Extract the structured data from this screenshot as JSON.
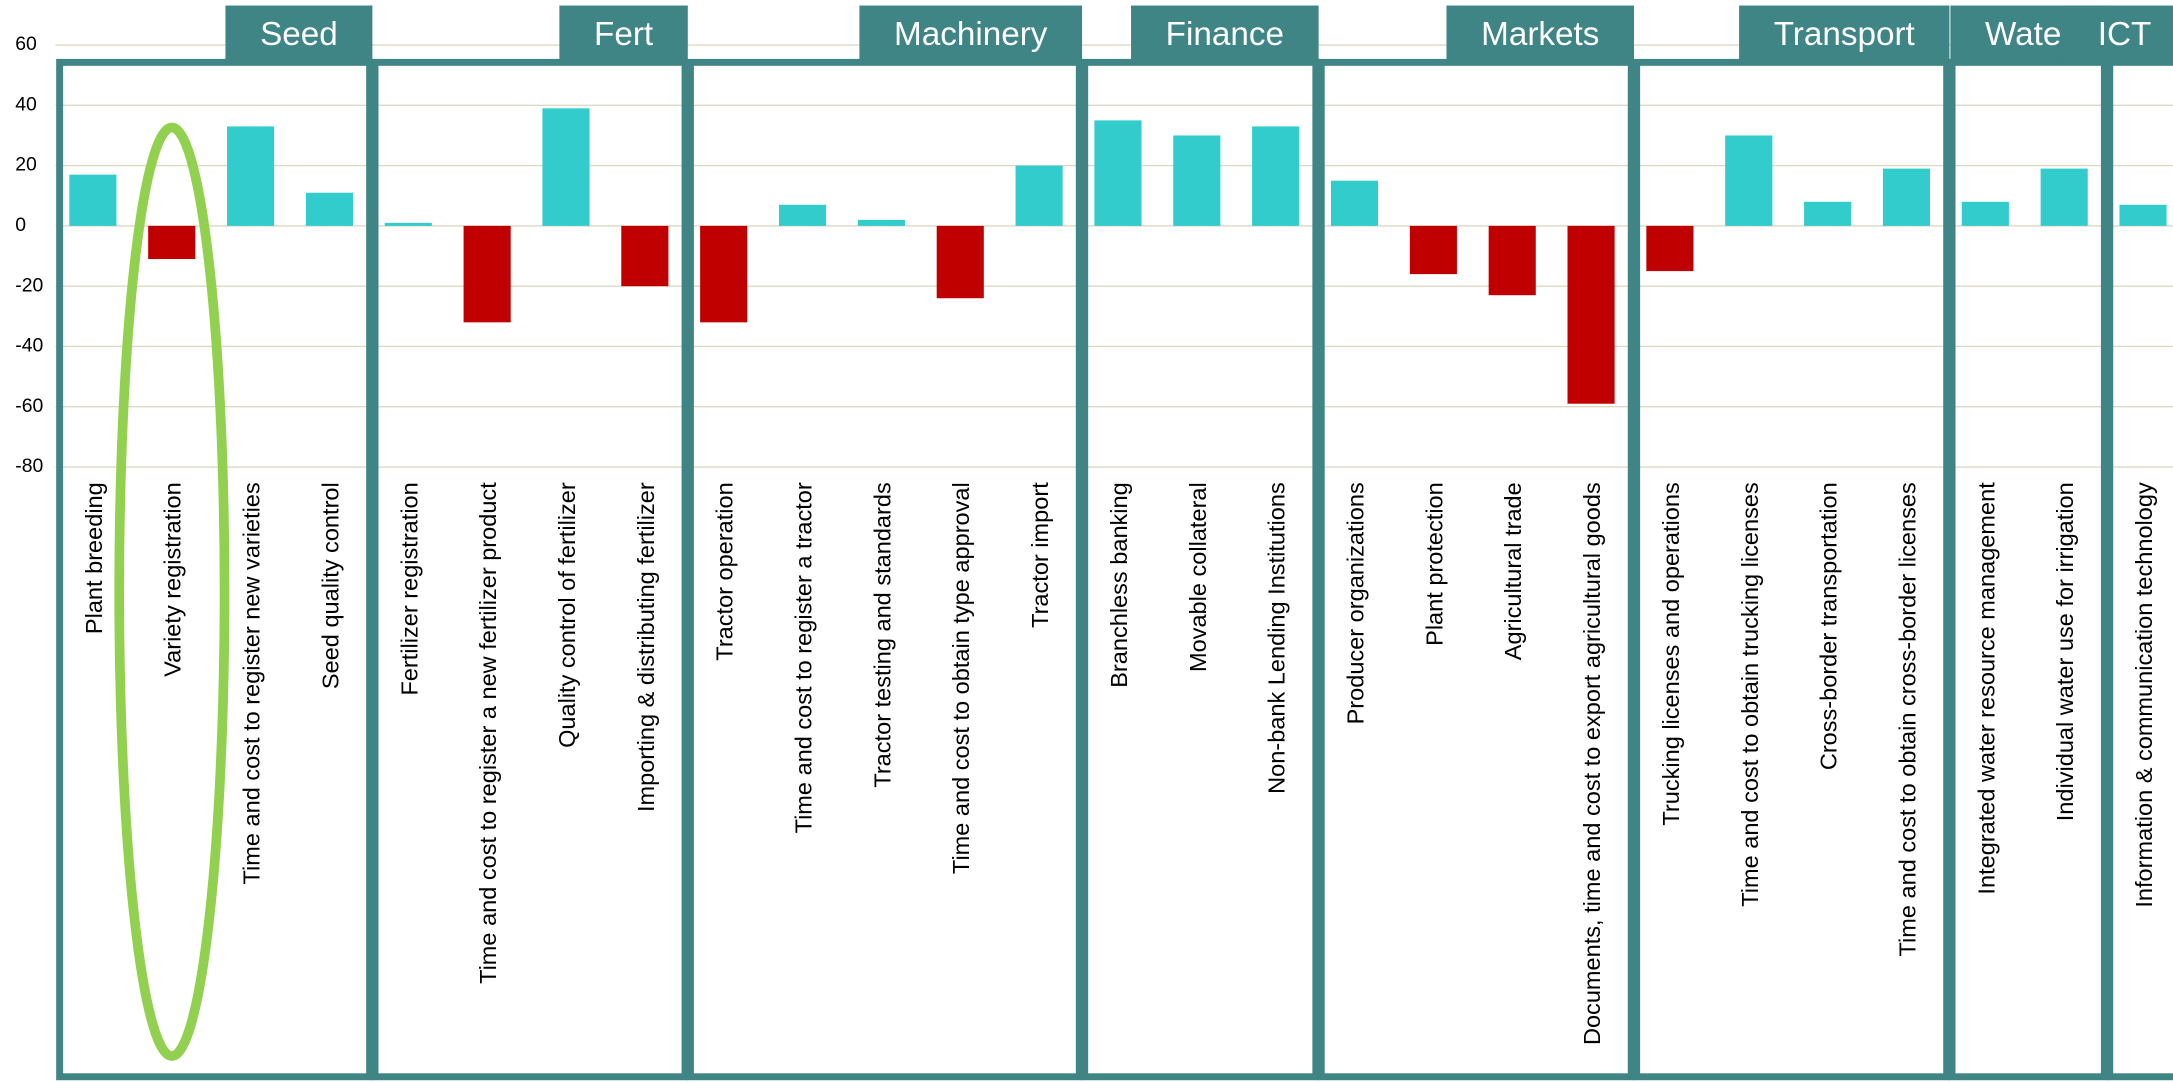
{
  "chart_data": {
    "type": "bar",
    "color_positive": "#33cccc",
    "color_negative": "#c00000",
    "ylim": [
      -80,
      60
    ],
    "yticks": [
      60,
      40,
      20,
      0,
      -20,
      -40,
      -60,
      -80
    ],
    "grid": true,
    "groups": [
      {
        "name": "Seed",
        "categories": [
          "Plant breeding",
          "Variety registration",
          "Time and cost to register new varieties",
          "Seed quality control"
        ],
        "values": [
          17,
          -11,
          33,
          11
        ]
      },
      {
        "name": "Fert",
        "categories": [
          "Fertilizer registration",
          "Time and cost to register a new fertilizer product",
          "Quality control of fertilizer",
          "Importing & distributing fertilizer"
        ],
        "values": [
          1,
          -32,
          39,
          -20
        ]
      },
      {
        "name": "Machinery",
        "categories": [
          "Tractor operation",
          "Time and cost to register a tractor",
          "Tractor testing and standards",
          "Time and cost to obtain type approval",
          "Tractor import"
        ],
        "values": [
          -32,
          7,
          2,
          -24,
          20
        ]
      },
      {
        "name": "Finance",
        "categories": [
          "Branchless banking",
          "Movable collateral",
          "Non-bank Lending Institutions"
        ],
        "values": [
          35,
          30,
          33
        ]
      },
      {
        "name": "Markets",
        "categories": [
          "Producer organizations",
          "Plant protection",
          "Agricultural trade",
          "Documents, time and cost to export agricultural goods"
        ],
        "values": [
          15,
          -16,
          -23,
          -59
        ]
      },
      {
        "name": "Transport",
        "categories": [
          "Trucking licenses and operations",
          "Time and cost to obtain trucking licenses",
          "Cross-border transportation",
          "Time and cost to obtain cross-border licenses"
        ],
        "values": [
          -15,
          30,
          8,
          19
        ]
      },
      {
        "name": "Water",
        "categories": [
          "Integrated water resource management",
          "Individual water use for irrigation"
        ],
        "values": [
          8,
          19
        ]
      },
      {
        "name": "ICT",
        "categories": [
          "Information & communication technology"
        ],
        "values": [
          7
        ]
      }
    ]
  }
}
